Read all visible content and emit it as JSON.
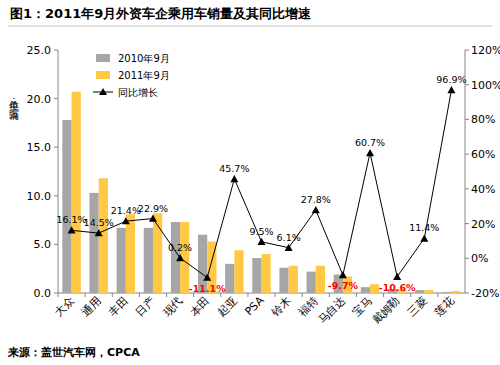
{
  "chart_data": {
    "type": "bar",
    "title": "图1：2011年9月外资车企乘用车销量及其同比增速",
    "ylabel": "单位：万辆",
    "source": "来源：盖世汽车网，CPCA",
    "categories": [
      "大众",
      "通用",
      "丰田",
      "日产",
      "现代",
      "本田",
      "起亚",
      "PSA",
      "铃木",
      "福特",
      "马自达",
      "宝马",
      "戴姆勒",
      "三菱",
      "莲花"
    ],
    "series": [
      {
        "name": "2010年9月",
        "type": "bar",
        "color": "#a6a6a6",
        "values": [
          17.8,
          10.3,
          6.7,
          6.7,
          7.3,
          6.0,
          3.0,
          3.6,
          2.6,
          2.2,
          1.9,
          0.6,
          0.4,
          0.3,
          0.1
        ]
      },
      {
        "name": "2011年9月",
        "type": "bar",
        "color": "#ffc845",
        "values": [
          20.7,
          11.8,
          8.1,
          8.2,
          7.3,
          5.3,
          4.4,
          4.0,
          2.8,
          2.8,
          1.7,
          0.9,
          0.35,
          0.3,
          0.2
        ]
      },
      {
        "name": "同比增长",
        "type": "line",
        "axis": "y2",
        "color": "#000000",
        "marker": "triangle",
        "data_labels": true,
        "values": [
          16.1,
          14.5,
          21.4,
          22.9,
          0.2,
          -11.1,
          45.7,
          9.5,
          6.1,
          27.8,
          -9.7,
          60.7,
          -10.6,
          11.4,
          96.9
        ],
        "value_labels": [
          "16.1%",
          "14.5%",
          "21.4%",
          "22.9%",
          "0.2%",
          "-11.1%",
          "45.7%",
          "9.5%",
          "6.1%",
          "27.8%",
          "-9.7%",
          "60.7%",
          "-10.6%",
          "11.4%",
          "96.9%"
        ]
      }
    ],
    "ylim": [
      0,
      25
    ],
    "yticks": [
      {
        "value": 0,
        "label": "0.0"
      },
      {
        "value": 5,
        "label": "5.0"
      },
      {
        "value": 10,
        "label": "10.0"
      },
      {
        "value": 15,
        "label": "15.0"
      },
      {
        "value": 20,
        "label": "20.0"
      },
      {
        "value": 25,
        "label": "25.0"
      }
    ],
    "y2lim": [
      -20,
      120
    ],
    "y2ticks": [
      {
        "value": -20,
        "label": "-20%"
      },
      {
        "value": 0,
        "label": "0%"
      },
      {
        "value": 20,
        "label": "20%"
      },
      {
        "value": 40,
        "label": "40%"
      },
      {
        "value": 60,
        "label": "60%"
      },
      {
        "value": 80,
        "label": "80%"
      },
      {
        "value": 100,
        "label": "100%"
      },
      {
        "value": 120,
        "label": "120%"
      }
    ],
    "grid": false,
    "legend": "upper left"
  }
}
